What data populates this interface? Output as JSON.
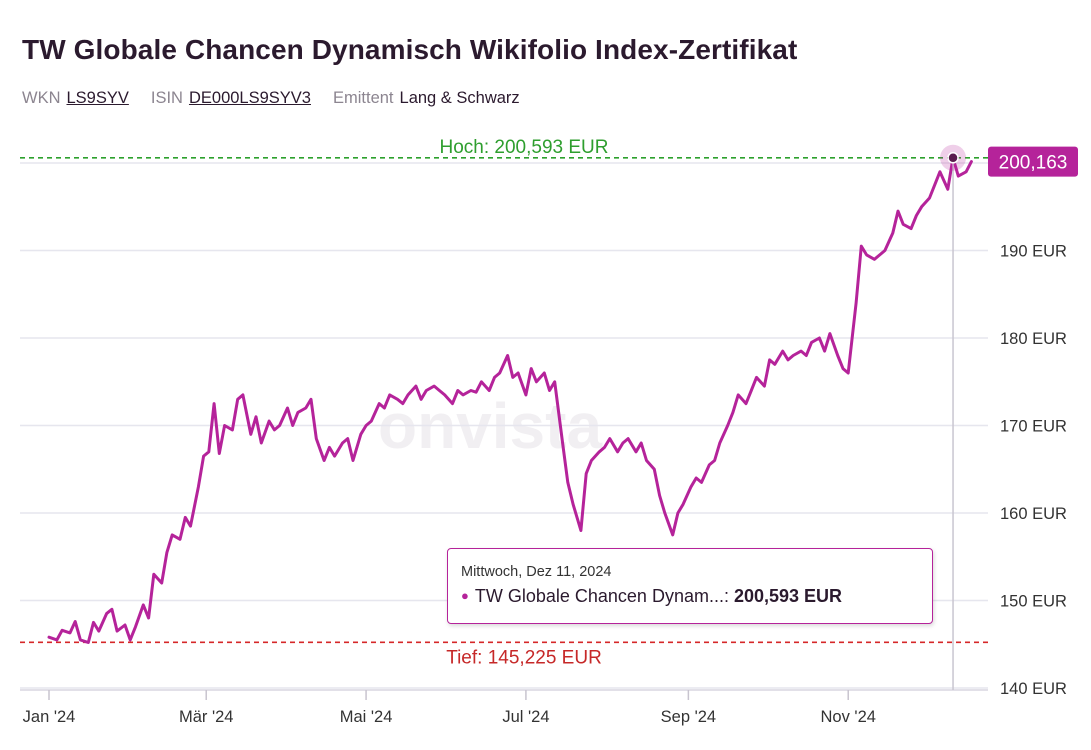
{
  "header": {
    "title": "TW Globale Chancen Dynamisch Wikifolio Index-Zertifikat",
    "wkn_label": "WKN",
    "wkn": "LS9SYV",
    "isin_label": "ISIN",
    "isin": "DE000LS9SYV3",
    "issuer_label": "Emittent",
    "issuer": "Lang & Schwarz"
  },
  "colors": {
    "series": "#b5239a",
    "high_line": "#2ca02c",
    "low_line": "#d62728",
    "grid": "#e6e6ee"
  },
  "watermark": "onvista",
  "chart_data": {
    "type": "line",
    "ylim": [
      140,
      200
    ],
    "yticks": [
      {
        "value": 140,
        "label": "140 EUR"
      },
      {
        "value": 150,
        "label": "150 EUR"
      },
      {
        "value": 160,
        "label": "160 EUR"
      },
      {
        "value": 170,
        "label": "170 EUR"
      },
      {
        "value": 180,
        "label": "180 EUR"
      },
      {
        "value": 190,
        "label": "190 EUR"
      },
      {
        "value": 200,
        "label": "200 EUR"
      }
    ],
    "xlim": [
      "2024-01-01",
      "2024-12-19"
    ],
    "xticks": [
      {
        "date": "2024-01-01",
        "label": "Jan '24"
      },
      {
        "date": "2024-03-01",
        "label": "Mär '24"
      },
      {
        "date": "2024-05-01",
        "label": "Mai '24"
      },
      {
        "date": "2024-07-01",
        "label": "Jul '24"
      },
      {
        "date": "2024-09-01",
        "label": "Sep '24"
      },
      {
        "date": "2024-11-01",
        "label": "Nov '24"
      }
    ],
    "high": {
      "value": 200.593,
      "label": "Hoch: 200,593 EUR"
    },
    "low": {
      "value": 145.225,
      "label": "Tief: 145,225 EUR"
    },
    "last": {
      "value": 200.163,
      "label": "200,163"
    },
    "grid": true,
    "series": [
      {
        "points": [
          [
            "2024-01-01",
            145.8
          ],
          [
            "2024-01-04",
            145.5
          ],
          [
            "2024-01-06",
            146.6
          ],
          [
            "2024-01-09",
            146.3
          ],
          [
            "2024-01-11",
            147.6
          ],
          [
            "2024-01-13",
            145.5
          ],
          [
            "2024-01-16",
            145.2
          ],
          [
            "2024-01-18",
            147.5
          ],
          [
            "2024-01-20",
            146.5
          ],
          [
            "2024-01-23",
            148.5
          ],
          [
            "2024-01-25",
            149.0
          ],
          [
            "2024-01-27",
            146.5
          ],
          [
            "2024-01-30",
            147.2
          ],
          [
            "2024-02-01",
            145.5
          ],
          [
            "2024-02-03",
            147.0
          ],
          [
            "2024-02-06",
            149.5
          ],
          [
            "2024-02-08",
            148.0
          ],
          [
            "2024-02-10",
            153.0
          ],
          [
            "2024-02-13",
            152.0
          ],
          [
            "2024-02-15",
            155.5
          ],
          [
            "2024-02-17",
            157.5
          ],
          [
            "2024-02-20",
            157.0
          ],
          [
            "2024-02-22",
            159.5
          ],
          [
            "2024-02-24",
            158.5
          ],
          [
            "2024-02-27",
            163.0
          ],
          [
            "2024-02-29",
            166.5
          ],
          [
            "2024-03-02",
            167.0
          ],
          [
            "2024-03-04",
            172.5
          ],
          [
            "2024-03-06",
            166.8
          ],
          [
            "2024-03-08",
            170.0
          ],
          [
            "2024-03-11",
            169.5
          ],
          [
            "2024-03-13",
            173.0
          ],
          [
            "2024-03-15",
            173.5
          ],
          [
            "2024-03-18",
            169.0
          ],
          [
            "2024-03-20",
            171.0
          ],
          [
            "2024-03-22",
            168.0
          ],
          [
            "2024-03-25",
            170.5
          ],
          [
            "2024-03-27",
            169.5
          ],
          [
            "2024-03-29",
            170.0
          ],
          [
            "2024-04-01",
            172.0
          ],
          [
            "2024-04-03",
            170.0
          ],
          [
            "2024-04-05",
            171.5
          ],
          [
            "2024-04-08",
            172.0
          ],
          [
            "2024-04-10",
            173.0
          ],
          [
            "2024-04-12",
            168.5
          ],
          [
            "2024-04-15",
            166.0
          ],
          [
            "2024-04-17",
            167.5
          ],
          [
            "2024-04-19",
            166.5
          ],
          [
            "2024-04-22",
            168.0
          ],
          [
            "2024-04-24",
            168.5
          ],
          [
            "2024-04-26",
            166.0
          ],
          [
            "2024-04-29",
            169.0
          ],
          [
            "2024-05-01",
            170.0
          ],
          [
            "2024-05-03",
            170.5
          ],
          [
            "2024-05-06",
            172.5
          ],
          [
            "2024-05-08",
            172.0
          ],
          [
            "2024-05-10",
            173.5
          ],
          [
            "2024-05-13",
            173.0
          ],
          [
            "2024-05-15",
            172.5
          ],
          [
            "2024-05-17",
            173.5
          ],
          [
            "2024-05-20",
            174.5
          ],
          [
            "2024-05-22",
            173.0
          ],
          [
            "2024-05-24",
            174.0
          ],
          [
            "2024-05-27",
            174.5
          ],
          [
            "2024-05-29",
            174.0
          ],
          [
            "2024-05-31",
            173.5
          ],
          [
            "2024-06-03",
            172.5
          ],
          [
            "2024-06-05",
            174.0
          ],
          [
            "2024-06-07",
            173.5
          ],
          [
            "2024-06-10",
            174.0
          ],
          [
            "2024-06-12",
            173.8
          ],
          [
            "2024-06-14",
            175.0
          ],
          [
            "2024-06-17",
            174.0
          ],
          [
            "2024-06-19",
            175.5
          ],
          [
            "2024-06-21",
            176.0
          ],
          [
            "2024-06-24",
            178.0
          ],
          [
            "2024-06-26",
            175.5
          ],
          [
            "2024-06-28",
            176.0
          ],
          [
            "2024-07-01",
            173.5
          ],
          [
            "2024-07-03",
            176.5
          ],
          [
            "2024-07-05",
            175.0
          ],
          [
            "2024-07-08",
            176.0
          ],
          [
            "2024-07-10",
            174.0
          ],
          [
            "2024-07-12",
            175.0
          ],
          [
            "2024-07-15",
            168.0
          ],
          [
            "2024-07-17",
            163.5
          ],
          [
            "2024-07-19",
            161.0
          ],
          [
            "2024-07-22",
            158.0
          ],
          [
            "2024-07-24",
            164.5
          ],
          [
            "2024-07-26",
            166.0
          ],
          [
            "2024-07-29",
            167.0
          ],
          [
            "2024-07-31",
            167.5
          ],
          [
            "2024-08-02",
            168.5
          ],
          [
            "2024-08-05",
            167.0
          ],
          [
            "2024-08-07",
            168.0
          ],
          [
            "2024-08-09",
            168.5
          ],
          [
            "2024-08-12",
            167.0
          ],
          [
            "2024-08-14",
            168.0
          ],
          [
            "2024-08-16",
            166.0
          ],
          [
            "2024-08-19",
            165.0
          ],
          [
            "2024-08-21",
            162.0
          ],
          [
            "2024-08-23",
            160.0
          ],
          [
            "2024-08-26",
            157.5
          ],
          [
            "2024-08-28",
            160.0
          ],
          [
            "2024-08-30",
            161.0
          ],
          [
            "2024-09-02",
            163.0
          ],
          [
            "2024-09-04",
            164.0
          ],
          [
            "2024-09-06",
            163.5
          ],
          [
            "2024-09-09",
            165.5
          ],
          [
            "2024-09-11",
            166.0
          ],
          [
            "2024-09-13",
            168.0
          ],
          [
            "2024-09-16",
            170.0
          ],
          [
            "2024-09-18",
            171.5
          ],
          [
            "2024-09-20",
            173.5
          ],
          [
            "2024-09-23",
            172.5
          ],
          [
            "2024-09-25",
            174.0
          ],
          [
            "2024-09-27",
            175.5
          ],
          [
            "2024-09-30",
            174.5
          ],
          [
            "2024-10-02",
            177.5
          ],
          [
            "2024-10-04",
            177.0
          ],
          [
            "2024-10-07",
            178.5
          ],
          [
            "2024-10-09",
            177.5
          ],
          [
            "2024-10-11",
            178.0
          ],
          [
            "2024-10-14",
            178.5
          ],
          [
            "2024-10-16",
            178.0
          ],
          [
            "2024-10-18",
            179.5
          ],
          [
            "2024-10-21",
            180.0
          ],
          [
            "2024-10-23",
            178.5
          ],
          [
            "2024-10-25",
            180.5
          ],
          [
            "2024-10-28",
            178.0
          ],
          [
            "2024-10-30",
            176.5
          ],
          [
            "2024-11-01",
            176.0
          ],
          [
            "2024-11-04",
            184.0
          ],
          [
            "2024-11-06",
            190.5
          ],
          [
            "2024-11-08",
            189.5
          ],
          [
            "2024-11-11",
            189.0
          ],
          [
            "2024-11-13",
            189.5
          ],
          [
            "2024-11-15",
            190.0
          ],
          [
            "2024-11-18",
            192.0
          ],
          [
            "2024-11-20",
            194.5
          ],
          [
            "2024-11-22",
            193.0
          ],
          [
            "2024-11-25",
            192.5
          ],
          [
            "2024-11-27",
            194.0
          ],
          [
            "2024-11-29",
            195.0
          ],
          [
            "2024-12-02",
            196.0
          ],
          [
            "2024-12-04",
            197.5
          ],
          [
            "2024-12-06",
            199.0
          ],
          [
            "2024-12-09",
            197.0
          ],
          [
            "2024-12-11",
            200.593
          ],
          [
            "2024-12-13",
            198.5
          ],
          [
            "2024-12-16",
            199.0
          ],
          [
            "2024-12-18",
            200.163
          ]
        ]
      }
    ]
  },
  "tooltip": {
    "date": "Mittwoch, Dez 11, 2024",
    "series_name": "TW Globale Chancen Dynam...:",
    "value": "200,593 EUR"
  }
}
